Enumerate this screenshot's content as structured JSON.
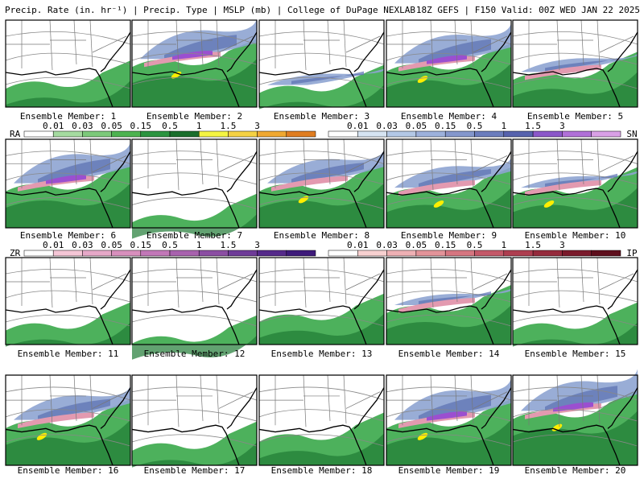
{
  "header": {
    "left": "Precip. Rate (in. hr⁻¹) | Precip. Type | MSLP (mb) | College of DuPage NEXLAB",
    "right": "18Z GEFS | F150 Valid: 00Z WED JAN 22 2025"
  },
  "legends": [
    {
      "label": "RA",
      "ticks": [
        "0.01",
        "0.03",
        "0.05",
        "0.15",
        "0.5",
        "1",
        "1.5",
        "3"
      ]
    },
    {
      "label": "SN",
      "ticks": [
        "0.01",
        "0.03",
        "0.05",
        "0.15",
        "0.5",
        "1",
        "1.5",
        "3"
      ]
    },
    {
      "label": "ZR",
      "ticks": [
        "0.01",
        "0.03",
        "0.05",
        "0.15",
        "0.5",
        "1",
        "1.5",
        "3"
      ]
    },
    {
      "label": "IP",
      "ticks": [
        "0.01",
        "0.03",
        "0.05",
        "0.15",
        "0.5",
        "1",
        "1.5",
        "3"
      ]
    }
  ],
  "panels": [
    {
      "label": "Ensemble Member: 1"
    },
    {
      "label": "Ensemble Member: 2"
    },
    {
      "label": "Ensemble Member: 3"
    },
    {
      "label": "Ensemble Member: 4"
    },
    {
      "label": "Ensemble Member: 5"
    },
    {
      "label": "Ensemble Member: 6"
    },
    {
      "label": "Ensemble Member: 7"
    },
    {
      "label": "Ensemble Member: 8"
    },
    {
      "label": "Ensemble Member: 9"
    },
    {
      "label": "Ensemble Member: 10"
    },
    {
      "label": "Ensemble Member: 11"
    },
    {
      "label": "Ensemble Member: 12"
    },
    {
      "label": "Ensemble Member: 13"
    },
    {
      "label": "Ensemble Member: 14"
    },
    {
      "label": "Ensemble Member: 15"
    },
    {
      "label": "Ensemble Member: 16"
    },
    {
      "label": "Ensemble Member: 17"
    },
    {
      "label": "Ensemble Member: 18"
    },
    {
      "label": "Ensemble Member: 19"
    },
    {
      "label": "Ensemble Member: 20"
    }
  ]
}
